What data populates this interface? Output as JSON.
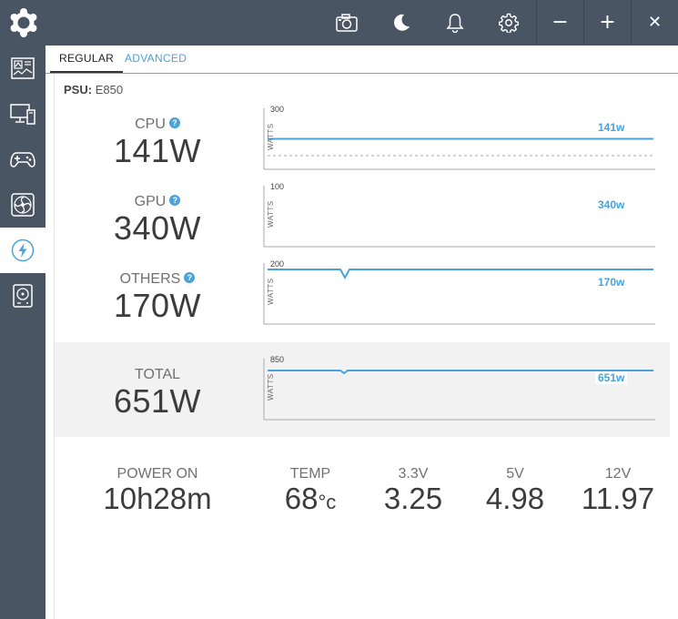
{
  "window": {
    "controls": {
      "minimize": "−",
      "maximize": "+",
      "close": "✕"
    },
    "toolbar_icons": [
      "camera-icon",
      "moon-icon",
      "bell-icon",
      "gear-icon"
    ]
  },
  "sidebar": {
    "items": [
      {
        "icon": "dashboard-icon"
      },
      {
        "icon": "monitor-icon"
      },
      {
        "icon": "gamepad-icon"
      },
      {
        "icon": "fan-icon"
      },
      {
        "icon": "power-icon",
        "active": true
      },
      {
        "icon": "storage-icon"
      }
    ]
  },
  "tabs": {
    "regular": "REGULAR",
    "advanced": "ADVANCED"
  },
  "psu": {
    "label": "PSU:",
    "model": "E850"
  },
  "colors": {
    "accent": "#4aa3d8",
    "chrome": "#4a5564"
  },
  "metrics": {
    "cpu": {
      "label": "CPU",
      "value": "141W",
      "chart_max": "300",
      "axis": "WATTS",
      "current": "141w"
    },
    "gpu": {
      "label": "GPU",
      "value": "340W",
      "chart_max": "100",
      "axis": "WATTS",
      "current": "340w"
    },
    "others": {
      "label": "OTHERS",
      "value": "170W",
      "chart_max": "200",
      "axis": "WATTS",
      "current": "170w"
    },
    "total": {
      "label": "TOTAL",
      "value": "651W",
      "chart_max": "850",
      "axis": "WATTS",
      "current": "651w"
    }
  },
  "help_glyph": "?",
  "stats": {
    "power_on": {
      "label": "POWER ON",
      "value": "10h28m"
    },
    "temp": {
      "label": "TEMP",
      "value": "68",
      "unit": "°c"
    },
    "v33": {
      "label": "3.3V",
      "value": "3.25"
    },
    "v5": {
      "label": "5V",
      "value": "4.98"
    },
    "v12": {
      "label": "12V",
      "value": "11.97"
    }
  }
}
